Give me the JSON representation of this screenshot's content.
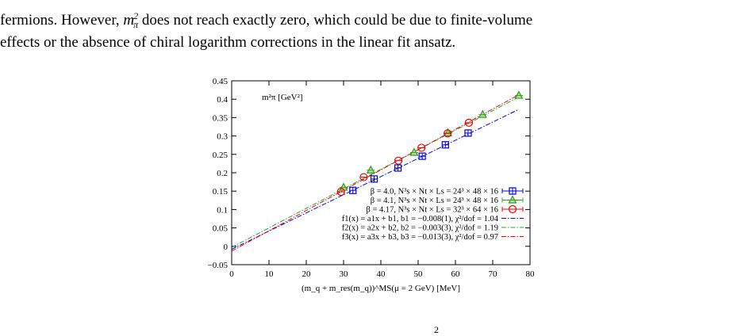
{
  "text": {
    "line1_a": "fermions. However, ",
    "line1_b": " does not reach exactly zero, which could be due to finite-volume",
    "line2": "effects or the absence of chiral logarithm corrections in the linear fit ansatz.",
    "math_m": "m",
    "math_sup": "2",
    "math_sub": "π",
    "bottom_sup": "2"
  },
  "chart_data": {
    "type": "scatter",
    "title": "",
    "ylabel": "m²π [GeV²]",
    "xlabel": "(m_q + m_res(m_q))^MS(μ = 2 GeV) [MeV]",
    "xlim": [
      0,
      80
    ],
    "ylim": [
      -0.05,
      0.45
    ],
    "x_ticks": [
      "0",
      "10",
      "20",
      "30",
      "40",
      "50",
      "60",
      "70",
      "80"
    ],
    "y_ticks": [
      "−0.05",
      "0",
      "0.05",
      "0.1",
      "0.15",
      "0.2",
      "0.25",
      "0.3",
      "0.35",
      "0.4",
      "0.45"
    ],
    "grid": false,
    "legend_position": "bottom-right",
    "series": [
      {
        "name": "β = 4.0, N³s × Nt × Ls = 24³ × 48 × 16",
        "color": "#0000ee",
        "marker": "square",
        "x": [
          32.5,
          38.2,
          44.6,
          51.1,
          57.3,
          63.4
        ],
        "y": [
          0.152,
          0.183,
          0.213,
          0.245,
          0.276,
          0.308
        ]
      },
      {
        "name": "β = 4.1, N³s × Nt × Ls = 24³ × 48 × 16",
        "color": "#2ea02e",
        "marker": "triangle",
        "x": [
          30.0,
          37.3,
          48.9,
          58.0,
          67.3,
          77.0
        ],
        "y": [
          0.16,
          0.207,
          0.255,
          0.308,
          0.358,
          0.41
        ]
      },
      {
        "name": "β = 4.17, N³s × Nt × Ls = 32³ × 64 × 16",
        "color": "#ee0000",
        "marker": "circle",
        "x": [
          29.3,
          35.4,
          44.7,
          50.9,
          57.9,
          63.6
        ],
        "y": [
          0.148,
          0.188,
          0.233,
          0.268,
          0.307,
          0.336
        ]
      }
    ],
    "fits": [
      {
        "name": "f1(x) = a1x + b1, b1 = −0.008(1), χ²/dof = 1.04",
        "color": "#0000ee",
        "slope": 0.00494,
        "intercept": -0.008
      },
      {
        "name": "f2(x) = a2x + b2, b2 = −0.003(3), χ²/dof = 1.19",
        "color": "#2ea02e",
        "slope": 0.00531,
        "intercept": -0.003
      },
      {
        "name": "f3(x) = a3x + b3, b3 = −0.013(3), χ²/dof = 0.97",
        "color": "#ee0000",
        "slope": 0.00552,
        "intercept": -0.013
      }
    ]
  }
}
